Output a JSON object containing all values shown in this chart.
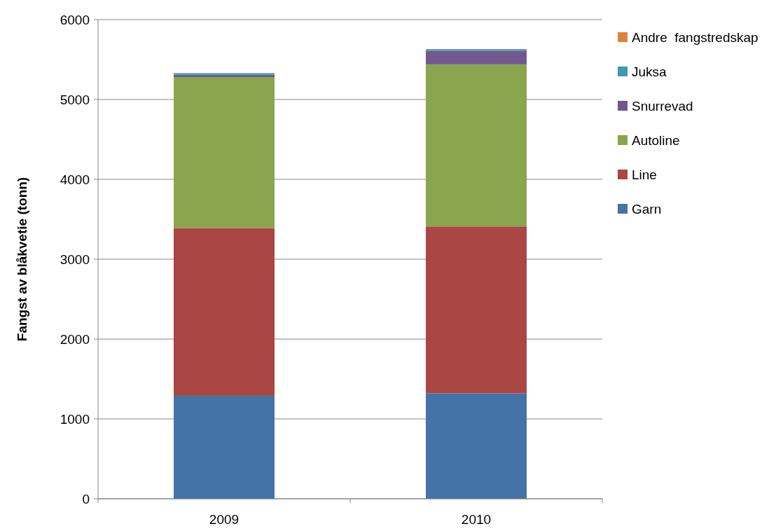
{
  "chart_data": {
    "type": "bar",
    "stacked": true,
    "categories": [
      "2009",
      "2010"
    ],
    "ylabel": "Fangst av blåkvetie (tonn)",
    "ylim": [
      0,
      6000
    ],
    "yticks": [
      0,
      1000,
      2000,
      3000,
      4000,
      5000,
      6000
    ],
    "grid": "y",
    "legend": "right",
    "series": [
      {
        "name": "Garn",
        "color": "#4572a7",
        "values": [
          1290,
          1320
        ]
      },
      {
        "name": "Line",
        "color": "#aa4643",
        "values": [
          2100,
          2090
        ]
      },
      {
        "name": "Autoline",
        "color": "#89a54e",
        "values": [
          1890,
          2030
        ]
      },
      {
        "name": "Snurrevad",
        "color": "#71588f",
        "values": [
          30,
          170
        ]
      },
      {
        "name": "Juksa",
        "color": "#4198af",
        "values": [
          20,
          20
        ]
      },
      {
        "name": "Andre  fangstredskap",
        "color": "#db843d",
        "values": [
          null,
          null
        ]
      }
    ]
  }
}
